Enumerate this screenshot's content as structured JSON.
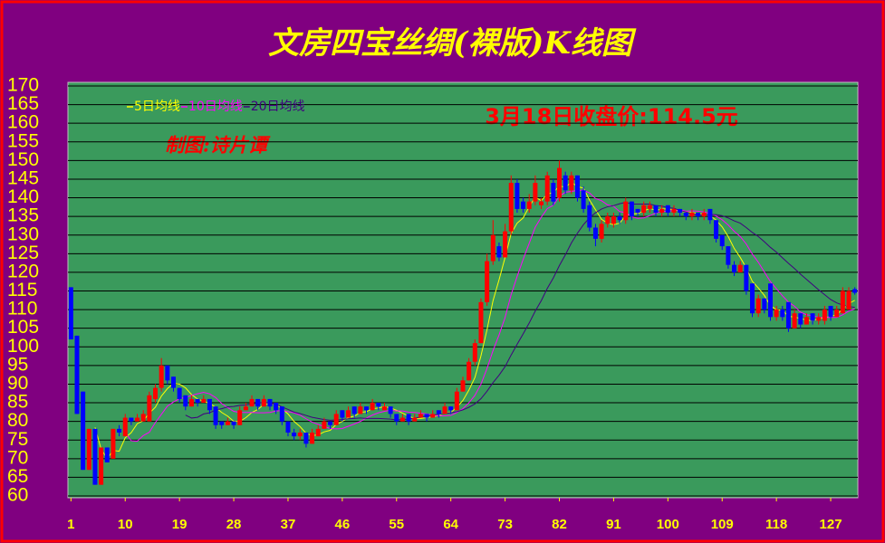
{
  "chart_data": {
    "type": "candlestick",
    "title": "文房四宝丝绸(裸版)K线图",
    "annotation": "3月18日收盘价:114.5元",
    "credit": "制图:诗片谭",
    "up_color": "#ff0000",
    "down_color": "#0000ff",
    "grid": true,
    "x": [
      1,
      2,
      3,
      4,
      5,
      6,
      7,
      8,
      9,
      10,
      11,
      12,
      13,
      14,
      15,
      16,
      17,
      18,
      19,
      20,
      21,
      22,
      23,
      24,
      25,
      26,
      27,
      28,
      29,
      30,
      31,
      32,
      33,
      34,
      35,
      36,
      37,
      38,
      39,
      40,
      41,
      42,
      43,
      44,
      45,
      46,
      47,
      48,
      49,
      50,
      51,
      52,
      53,
      54,
      55,
      56,
      57,
      58,
      59,
      60,
      61,
      62,
      63,
      64,
      65,
      66,
      67,
      68,
      69,
      70,
      71,
      72,
      73,
      74,
      75,
      76,
      77,
      78,
      79,
      80,
      81,
      82,
      83,
      84,
      85,
      86,
      87,
      88,
      89,
      90,
      91,
      92,
      93,
      94,
      95,
      96,
      97,
      98,
      99,
      100,
      101,
      102,
      103,
      104,
      105,
      106,
      107,
      108,
      109,
      110,
      111,
      112,
      113,
      114,
      115,
      116,
      117,
      118,
      119,
      120,
      121,
      122,
      123,
      124,
      125,
      126,
      127,
      128,
      129,
      130,
      131
    ],
    "open": [
      116,
      103,
      88,
      67,
      78,
      63,
      73,
      70,
      78,
      76,
      81,
      80,
      80,
      80,
      86,
      89,
      95,
      92,
      89,
      87,
      84,
      86,
      85,
      86,
      84,
      80,
      79,
      80,
      79,
      83,
      84,
      86,
      84,
      86,
      85,
      84,
      80,
      77,
      76,
      77,
      74,
      76,
      78,
      80,
      79,
      83,
      81,
      84,
      82,
      84,
      83,
      85,
      83,
      84,
      82,
      80,
      82,
      80,
      81,
      82,
      81,
      83,
      82,
      84,
      83,
      88,
      91,
      96,
      101,
      112,
      123,
      127,
      124,
      131,
      144,
      139,
      137,
      139,
      138,
      139,
      144,
      140,
      146,
      142,
      146,
      142,
      138,
      132,
      129,
      133,
      133,
      135,
      134,
      139,
      137,
      136,
      137,
      138,
      136,
      138,
      136,
      137,
      136,
      135,
      136,
      135,
      137,
      134,
      130,
      127,
      122,
      120,
      122,
      117,
      109,
      113,
      117,
      108,
      110,
      112,
      105,
      109,
      106,
      109,
      107,
      107,
      111,
      108,
      109,
      110,
      115.5
    ],
    "high": [
      116,
      103,
      88,
      78,
      78,
      73,
      73,
      78,
      79,
      82,
      81,
      82,
      83,
      88,
      90,
      97,
      95,
      92,
      89,
      87,
      87,
      86,
      87,
      86,
      84,
      80,
      81,
      80,
      84,
      85,
      87,
      86,
      87,
      86,
      85,
      84,
      80,
      78,
      78,
      77,
      78,
      79,
      81,
      80,
      83,
      83,
      84,
      84,
      85,
      84,
      86,
      85,
      85,
      84,
      82,
      82,
      82,
      82,
      83,
      82,
      83,
      83,
      85,
      84,
      89,
      92,
      97,
      102,
      113,
      125,
      134,
      128,
      133,
      146,
      145,
      140,
      141,
      146,
      140,
      147,
      145,
      150,
      147,
      147,
      146,
      143,
      139,
      133,
      134,
      136,
      136,
      136,
      140,
      139,
      137,
      139,
      139,
      138,
      138,
      138,
      138,
      137,
      136,
      137,
      136,
      137,
      137,
      134,
      130,
      127,
      123,
      123,
      122,
      117,
      114,
      113,
      117,
      111,
      111,
      112,
      110,
      109,
      109,
      109,
      109,
      111,
      111,
      111,
      116,
      116,
      116
    ],
    "low": [
      102,
      82,
      67,
      67,
      63,
      63,
      69,
      70,
      76,
      76,
      79,
      80,
      80,
      80,
      85,
      88,
      90,
      88,
      85,
      83,
      84,
      84,
      85,
      82,
      78,
      78,
      79,
      78,
      79,
      83,
      84,
      83,
      84,
      83,
      82,
      79,
      76,
      75,
      75,
      73,
      74,
      76,
      78,
      78,
      79,
      80,
      81,
      81,
      82,
      82,
      83,
      83,
      83,
      81,
      79,
      80,
      79,
      80,
      81,
      80,
      81,
      81,
      82,
      82,
      83,
      88,
      91,
      95,
      101,
      111,
      122,
      123,
      124,
      130,
      136,
      136,
      136,
      138,
      137,
      138,
      138,
      139,
      141,
      141,
      139,
      136,
      131,
      127,
      128,
      132,
      132,
      133,
      133,
      134,
      135,
      135,
      136,
      135,
      135,
      135,
      135,
      135,
      134,
      134,
      134,
      134,
      133,
      128,
      126,
      121,
      119,
      120,
      114,
      108,
      108,
      109,
      107,
      107,
      107,
      104,
      105,
      105,
      106,
      106,
      106,
      106,
      107,
      108,
      109,
      110,
      114
    ],
    "close": [
      102,
      82,
      67,
      78,
      63,
      73,
      69,
      78,
      77,
      81,
      80,
      81,
      82,
      87,
      89,
      95,
      91,
      89,
      86,
      84,
      86,
      85,
      86,
      83,
      79,
      79,
      80,
      79,
      83,
      84,
      86,
      84,
      86,
      84,
      83,
      80,
      77,
      76,
      77,
      74,
      77,
      78,
      80,
      79,
      82,
      81,
      83,
      82,
      84,
      83,
      85,
      84,
      84,
      82,
      80,
      81,
      80,
      81,
      82,
      81,
      82,
      82,
      84,
      83,
      88,
      91,
      96,
      101,
      112,
      123,
      130,
      124,
      131,
      144,
      137,
      137,
      139,
      144,
      139,
      146,
      139,
      148,
      142,
      146,
      140,
      137,
      132,
      129,
      133,
      135,
      135,
      134,
      139,
      135,
      136,
      138,
      138,
      136,
      137,
      136,
      137,
      136,
      135,
      136,
      135,
      136,
      134,
      129,
      127,
      122,
      120,
      122,
      115,
      109,
      113,
      110,
      108,
      110,
      108,
      105,
      109,
      106,
      108,
      107,
      108,
      110,
      108,
      110,
      115,
      115,
      114.5
    ],
    "series": [
      {
        "name": "5日均线",
        "color": "#ffff00",
        "values": [
          null,
          null,
          null,
          null,
          78.4,
          72.6,
          70,
          72.2,
          72,
          75.6,
          77,
          79.4,
          80.2,
          82.2,
          83.8,
          86.8,
          88.8,
          90.2,
          90,
          89,
          87.2,
          86,
          85.4,
          84.8,
          83.8,
          82.4,
          81.4,
          80,
          80,
          81,
          82.4,
          83.2,
          84.6,
          84.8,
          84.6,
          83.4,
          82,
          80,
          78.6,
          76.8,
          76.2,
          76.4,
          77.2,
          77.6,
          79.2,
          80,
          81,
          81.4,
          82.4,
          82.6,
          83.4,
          83.6,
          84,
          83.6,
          83,
          82.2,
          81.4,
          80.8,
          80.8,
          81,
          81.2,
          81.6,
          82.2,
          82.4,
          83.8,
          85.6,
          88.4,
          91.8,
          97.6,
          104.6,
          112.4,
          118,
          124,
          130.4,
          133.2,
          134.6,
          137.6,
          140.2,
          139.2,
          141,
          141.4,
          143.2,
          142.8,
          144.2,
          143,
          142.6,
          139.4,
          136.8,
          134.2,
          133.2,
          132.8,
          133.2,
          135.2,
          135.6,
          135.8,
          136.4,
          137.2,
          136.6,
          137,
          137,
          136.8,
          136.4,
          136.2,
          136,
          135.8,
          135.6,
          135.2,
          134,
          132.2,
          129.6,
          126.4,
          124,
          121.2,
          117.6,
          115.8,
          113.8,
          111,
          110,
          109.8,
          108.2,
          108,
          107.6,
          107.2,
          107,
          107.6,
          107.8,
          108.2,
          108.6,
          110.2,
          111.6,
          112.5
        ]
      },
      {
        "name": "10日均线",
        "color": "#ff00ff",
        "values": [
          null,
          null,
          null,
          null,
          null,
          null,
          null,
          null,
          null,
          77,
          74.8,
          74.7,
          76.2,
          77.1,
          79.7,
          81.9,
          84.1,
          85.2,
          86.1,
          86.4,
          87,
          87.4,
          87.8,
          87.4,
          86.4,
          84.8,
          83.7,
          82.7,
          82.4,
          82.4,
          82.4,
          82.3,
          82.3,
          82.4,
          82.8,
          82.9,
          82.6,
          82.3,
          81.7,
          80.7,
          79.8,
          79.2,
          78.6,
          78.1,
          78,
          78.1,
          78.7,
          79.3,
          80,
          80.9,
          81.7,
          82.3,
          82.7,
          83,
          82.8,
          82.8,
          82.5,
          82.4,
          82.2,
          82,
          81.7,
          81.5,
          81.5,
          81.6,
          82.4,
          83.4,
          85,
          87,
          90,
          94.2,
          99,
          103.2,
          107.9,
          114,
          118.9,
          123.5,
          127.8,
          132.1,
          134.8,
          137.1,
          138,
          140.4,
          141.5,
          141.7,
          142,
          142,
          141.3,
          139.8,
          139.2,
          138.1,
          137.7,
          136.3,
          136,
          134.9,
          134.5,
          134.6,
          135.2,
          135.9,
          136.3,
          136.4,
          136.6,
          136.8,
          136.4,
          136.5,
          136.4,
          136.2,
          135.8,
          135.1,
          134.1,
          132.7,
          131,
          129.6,
          127.6,
          124.9,
          122.7,
          120.1,
          117.5,
          115.6,
          113.7,
          112,
          110.9,
          109.3,
          108.6,
          108.4,
          107.9,
          107.9,
          107.9,
          107.9,
          108.6,
          109.6,
          110.2
        ]
      },
      {
        "name": "20日均线",
        "color": "#400080",
        "values": [
          null,
          null,
          null,
          null,
          null,
          null,
          null,
          null,
          null,
          null,
          null,
          null,
          null,
          null,
          null,
          null,
          null,
          null,
          null,
          81.7,
          80.9,
          81.1,
          82,
          82.3,
          83.1,
          83.4,
          83.9,
          84,
          84.3,
          84.4,
          84.7,
          84.9,
          85.1,
          84.9,
          84.6,
          83.9,
          83.2,
          82.5,
          82.1,
          81.6,
          81.1,
          80.8,
          80.5,
          80.3,
          80.4,
          80.5,
          80.7,
          80.8,
          80.9,
          80.8,
          80.8,
          80.8,
          80.7,
          80.6,
          80.4,
          80.5,
          80.6,
          80.9,
          81.1,
          81.5,
          81.7,
          81.9,
          82.1,
          82.3,
          82.6,
          83.1,
          83.8,
          84.7,
          86.1,
          88.1,
          90.4,
          92.4,
          94.7,
          97.8,
          100.7,
          103.5,
          106.4,
          109.6,
          112.4,
          115.7,
          118.5,
          121.8,
          124.7,
          127.9,
          130.5,
          132.8,
          134.6,
          136,
          137,
          137.6,
          137.9,
          138.4,
          138.8,
          138.3,
          138.3,
          138.3,
          138.3,
          137.9,
          137.8,
          137.3,
          137.2,
          136.6,
          136.2,
          135.7,
          135.5,
          135.4,
          135.5,
          135.5,
          135.2,
          134.6,
          133.8,
          133.2,
          132,
          130.7,
          129.6,
          128.2,
          126.7,
          125.4,
          123.9,
          122.4,
          121,
          119.5,
          118.1,
          116.7,
          115.3,
          114,
          112.7,
          111.8,
          111.2,
          110.8,
          110.6
        ]
      }
    ],
    "xlim": [
      0.5,
      131.5
    ],
    "xticks": [
      1,
      10,
      19,
      28,
      37,
      46,
      55,
      64,
      73,
      82,
      91,
      100,
      109,
      118,
      127
    ],
    "ylim": [
      60,
      170
    ],
    "yticks": [
      60,
      65,
      70,
      75,
      80,
      85,
      90,
      95,
      100,
      105,
      110,
      115,
      120,
      125,
      130,
      135,
      140,
      145,
      150,
      155,
      160,
      165,
      170
    ]
  }
}
